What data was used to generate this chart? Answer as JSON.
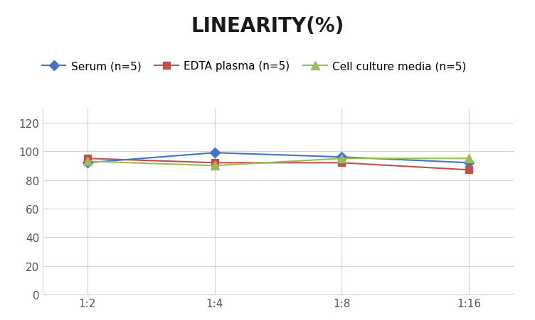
{
  "title": "LINEARITY(%)",
  "x_labels": [
    "1:2",
    "1:4",
    "1:8",
    "1:16"
  ],
  "x_positions": [
    0,
    1,
    2,
    3
  ],
  "series": [
    {
      "label": "Serum (n=5)",
      "values": [
        92,
        99,
        96,
        92
      ],
      "color": "#4472C4",
      "marker": "D",
      "markersize": 7
    },
    {
      "label": "EDTA plasma (n=5)",
      "values": [
        95,
        92,
        92,
        87
      ],
      "color": "#C0504D",
      "marker": "s",
      "markersize": 7
    },
    {
      "label": "Cell culture media (n=5)",
      "values": [
        93,
        90,
        95,
        95
      ],
      "color": "#9BBB59",
      "marker": "^",
      "markersize": 8
    }
  ],
  "ylim": [
    0,
    130
  ],
  "yticks": [
    0,
    20,
    40,
    60,
    80,
    100,
    120
  ],
  "background_color": "#ffffff",
  "grid_color": "#d4d4d4",
  "title_fontsize": 20,
  "legend_fontsize": 11,
  "tick_fontsize": 11
}
